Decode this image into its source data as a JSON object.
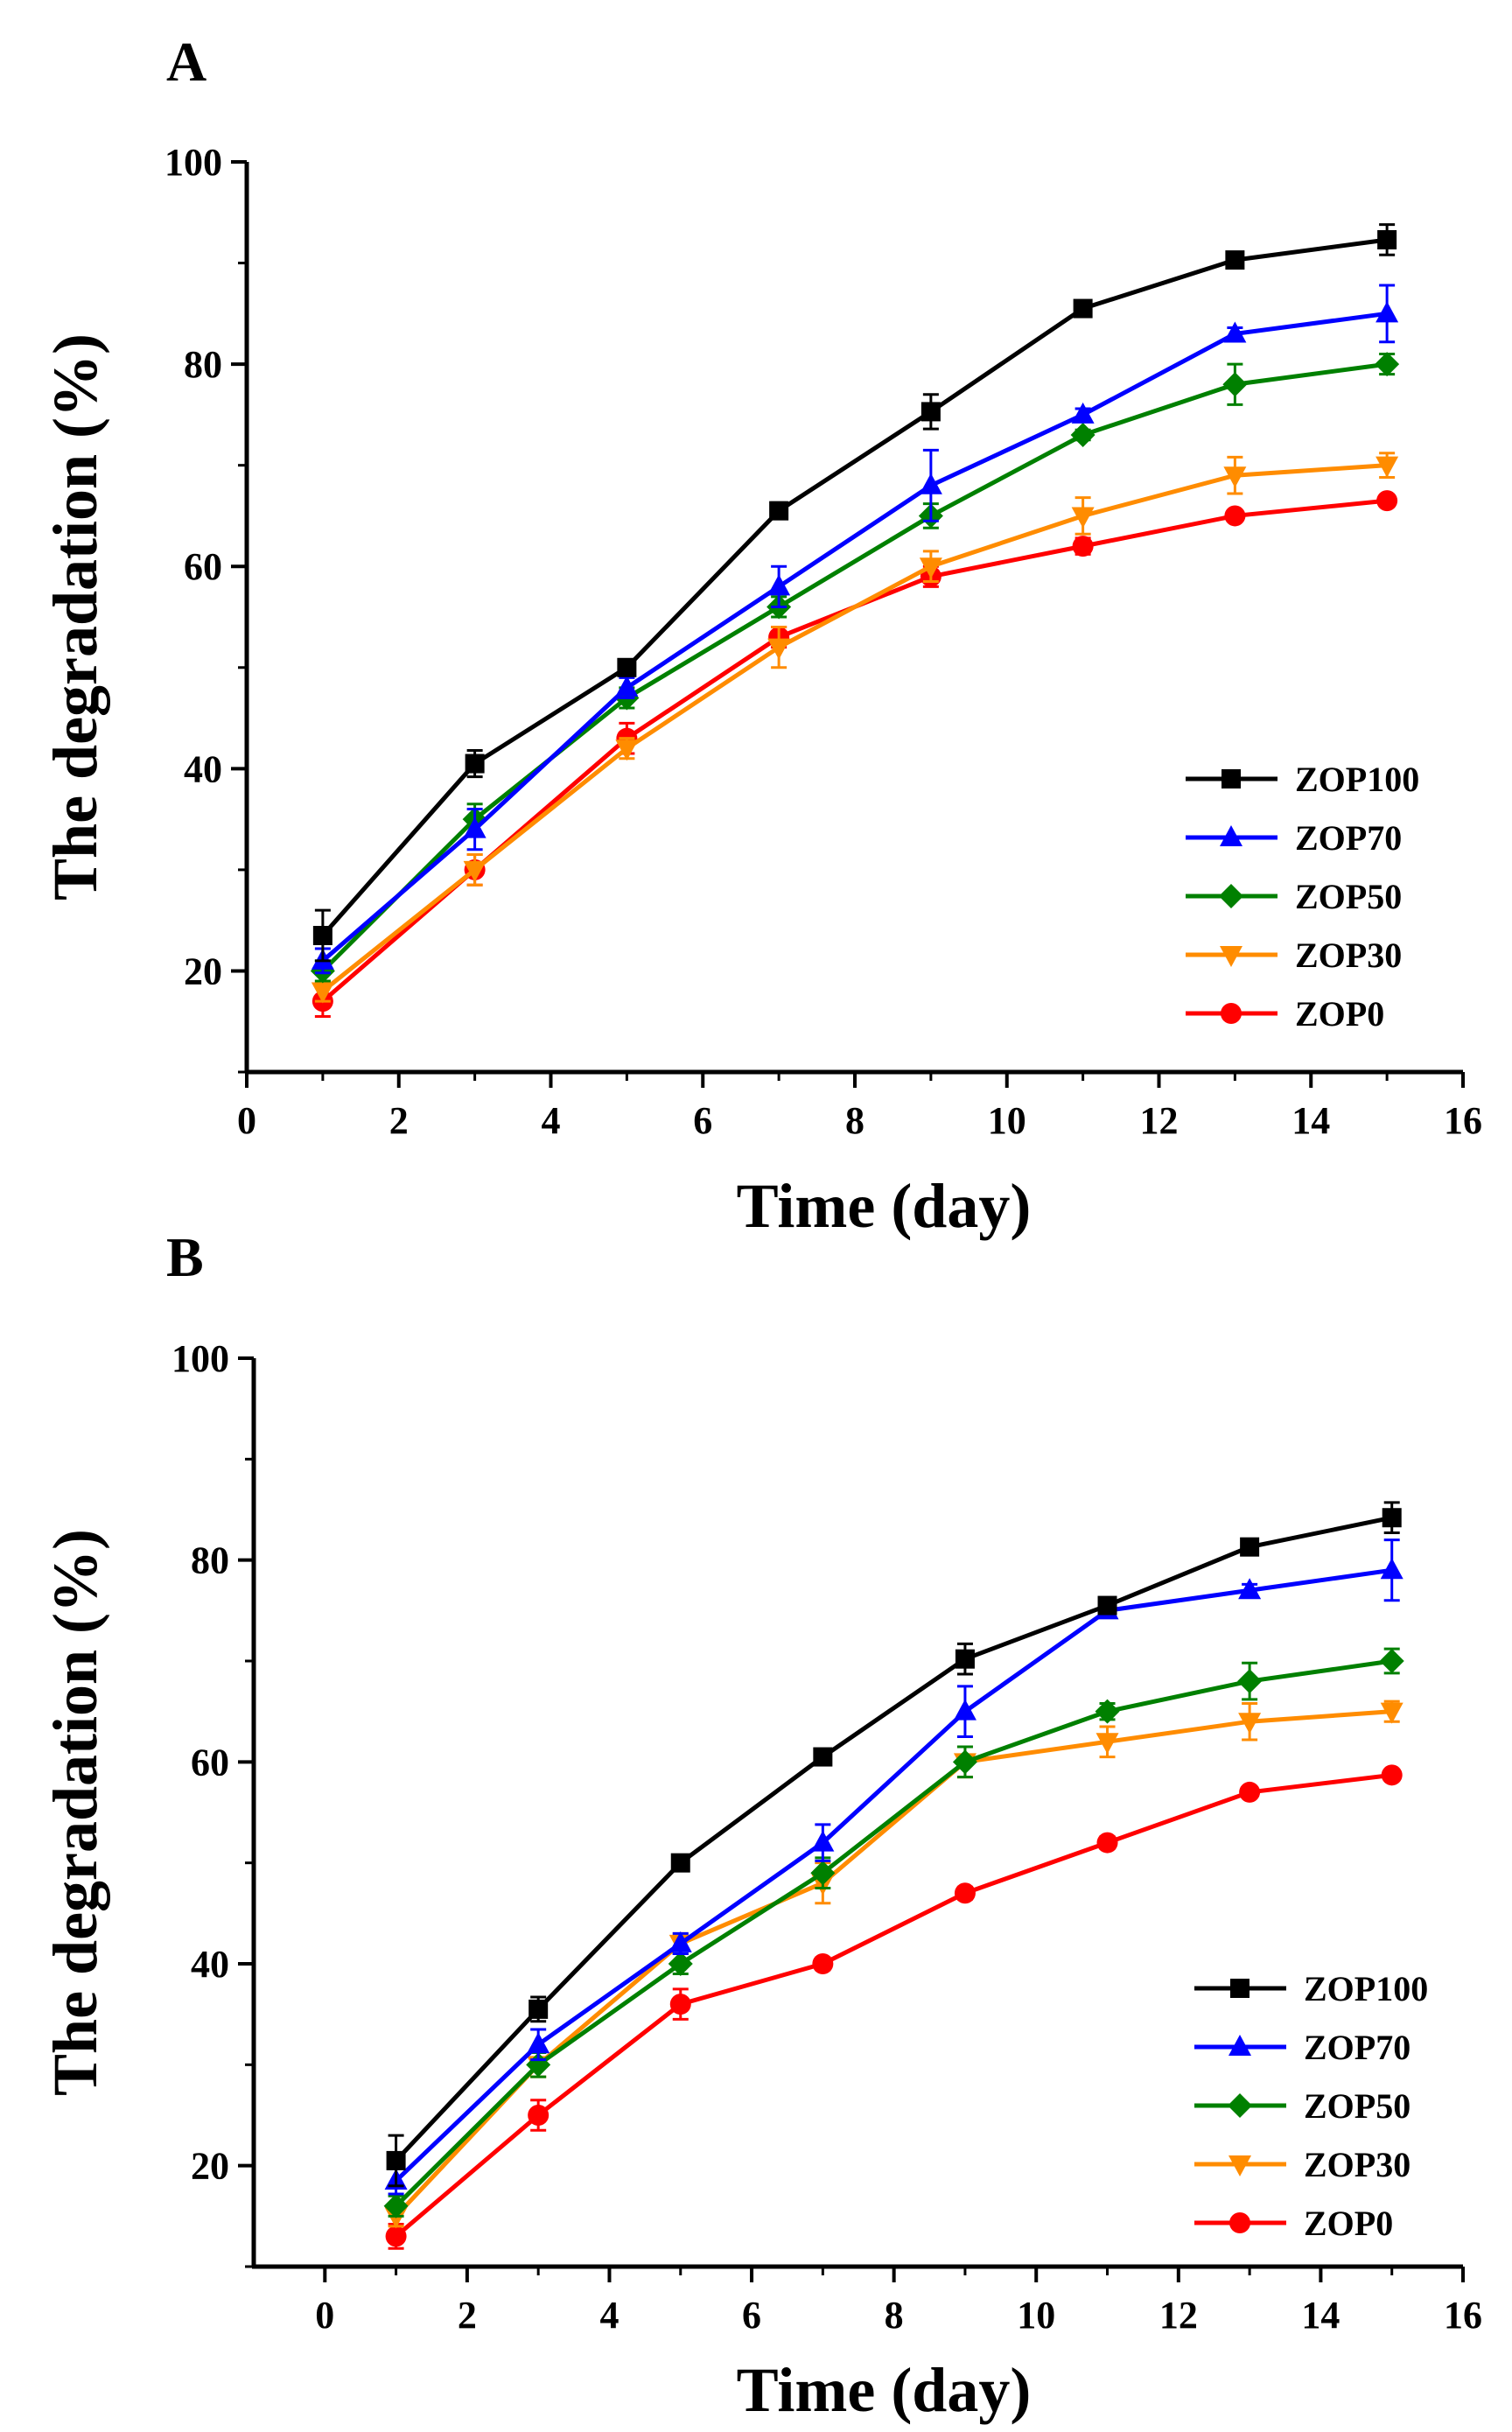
{
  "chart_data": [
    {
      "panel": "A",
      "type": "line",
      "xlabel": "Time (day)",
      "ylabel": "The degradation (%)",
      "xlim": [
        0,
        16
      ],
      "ylim": [
        10,
        100
      ],
      "xticks": [
        0,
        2,
        4,
        6,
        8,
        10,
        12,
        14,
        16
      ],
      "yticks": [
        20,
        40,
        60,
        80,
        100
      ],
      "legend_position": "bottom-right",
      "grid": false,
      "x": [
        1,
        3,
        5,
        7,
        9,
        11,
        13,
        15
      ],
      "series": [
        {
          "name": "ZOP100",
          "color": "#000000",
          "marker": "square",
          "values": [
            23.5,
            40.5,
            50,
            65.5,
            75.3,
            85.5,
            90.3,
            92.3
          ],
          "errors": [
            2.5,
            1.3,
            0.8,
            0.8,
            1.7,
            0.5,
            0.5,
            1.5
          ]
        },
        {
          "name": "ZOP70",
          "color": "#0000ff",
          "marker": "triangle-up",
          "values": [
            21,
            34,
            48,
            58,
            68,
            75,
            83,
            85
          ],
          "errors": [
            1.2,
            2.0,
            1.0,
            2.0,
            3.5,
            0.6,
            0.6,
            2.8
          ]
        },
        {
          "name": "ZOP50",
          "color": "#008000",
          "marker": "diamond",
          "values": [
            20,
            35,
            47,
            56,
            65,
            73,
            78,
            80
          ],
          "errors": [
            1.0,
            1.5,
            1.0,
            1.0,
            1.2,
            0.5,
            2.0,
            1.0
          ]
        },
        {
          "name": "ZOP30",
          "color": "#ff8c00",
          "marker": "triangle-down",
          "values": [
            18,
            30,
            42,
            52,
            60,
            65,
            69,
            70
          ],
          "errors": [
            1.0,
            1.5,
            1.0,
            2.0,
            1.5,
            1.8,
            1.8,
            1.2
          ]
        },
        {
          "name": "ZOP0",
          "color": "#ff0000",
          "marker": "circle",
          "values": [
            17,
            30,
            43,
            53,
            59,
            62,
            65,
            66.5
          ],
          "errors": [
            1.5,
            1.5,
            1.5,
            1.0,
            1.0,
            0.8,
            0.5,
            0.5
          ]
        }
      ]
    },
    {
      "panel": "B",
      "type": "line",
      "xlabel": "Time (day)",
      "ylabel": "The degradation (%)",
      "xlim": [
        -1,
        16
      ],
      "ylim": [
        10,
        100
      ],
      "xticks": [
        0,
        2,
        4,
        6,
        8,
        10,
        12,
        14,
        16
      ],
      "yticks": [
        20,
        40,
        60,
        80,
        100
      ],
      "legend_position": "bottom-right",
      "grid": false,
      "x": [
        1,
        3,
        5,
        7,
        9,
        11,
        13,
        15
      ],
      "series": [
        {
          "name": "ZOP100",
          "color": "#000000",
          "marker": "square",
          "values": [
            20.5,
            35.5,
            50,
            60.5,
            70.2,
            75.5,
            81.3,
            84.2
          ],
          "errors": [
            2.5,
            1.2,
            0.6,
            0.6,
            1.5,
            0.6,
            0.6,
            1.5
          ]
        },
        {
          "name": "ZOP70",
          "color": "#0000ff",
          "marker": "triangle-up",
          "values": [
            18.5,
            32,
            42,
            52,
            65,
            75,
            77,
            79
          ],
          "errors": [
            1.3,
            1.5,
            1.0,
            1.8,
            2.5,
            0.6,
            0.6,
            3.0
          ]
        },
        {
          "name": "ZOP50",
          "color": "#008000",
          "marker": "diamond",
          "values": [
            16,
            30,
            40,
            49,
            60,
            65,
            68,
            70
          ],
          "errors": [
            1.0,
            1.2,
            1.0,
            1.5,
            1.5,
            0.8,
            1.8,
            1.2
          ]
        },
        {
          "name": "ZOP30",
          "color": "#ff8c00",
          "marker": "triangle-down",
          "values": [
            15,
            30,
            42,
            48,
            60,
            62,
            64,
            65
          ],
          "errors": [
            1.0,
            1.2,
            1.0,
            2.0,
            1.5,
            1.5,
            1.8,
            1.0
          ]
        },
        {
          "name": "ZOP0",
          "color": "#ff0000",
          "marker": "circle",
          "values": [
            13,
            25,
            36,
            40,
            47,
            52,
            57,
            58.7
          ],
          "errors": [
            1.2,
            1.5,
            1.5,
            0.6,
            0.6,
            0.6,
            0.5,
            0.5
          ]
        }
      ]
    }
  ]
}
